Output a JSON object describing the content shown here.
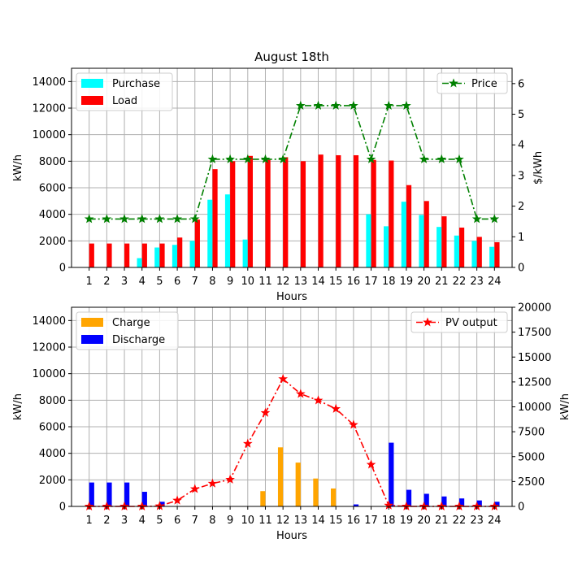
{
  "colors": {
    "purchase": "#00FFFF",
    "load": "#FF0000",
    "price": "#008000",
    "charge": "#FFA500",
    "discharge": "#0000FF",
    "pv": "#FF0000",
    "grid": "#B0B0B0"
  },
  "chart_data": [
    {
      "type": "bar",
      "title": "August 18th",
      "xlabel": "Hours",
      "ylabel": "kW/h",
      "y2label": "$/kWh",
      "categories": [
        "1",
        "2",
        "3",
        "4",
        "5",
        "6",
        "7",
        "8",
        "9",
        "10",
        "11",
        "12",
        "13",
        "14",
        "15",
        "16",
        "17",
        "18",
        "19",
        "20",
        "21",
        "22",
        "23",
        "24"
      ],
      "ylim": [
        0,
        15000
      ],
      "y_ticks": [
        0,
        2000,
        4000,
        6000,
        8000,
        10000,
        12000,
        14000
      ],
      "y2lim": [
        0,
        6.5
      ],
      "y2_ticks": [
        0,
        1,
        2,
        3,
        4,
        5,
        6
      ],
      "grid": true,
      "legend_left": "top-left",
      "legend_right": "top-right",
      "series": [
        {
          "name": "Purchase",
          "kind": "bar",
          "axis": "left",
          "values": [
            0,
            0,
            0,
            700,
            1500,
            1700,
            2000,
            5100,
            5500,
            2100,
            0,
            0,
            0,
            0,
            0,
            0,
            4000,
            3100,
            4950,
            3950,
            3050,
            2400,
            2000,
            1550
          ]
        },
        {
          "name": "Load",
          "kind": "bar",
          "axis": "left",
          "values": [
            1800,
            1800,
            1800,
            1800,
            1800,
            2250,
            3600,
            7400,
            8000,
            8400,
            8100,
            8300,
            8000,
            8500,
            8450,
            8450,
            8100,
            8050,
            6200,
            5000,
            3850,
            3000,
            2300,
            1900
          ]
        },
        {
          "name": "Price",
          "kind": "line",
          "axis": "right",
          "values": [
            1.58,
            1.58,
            1.58,
            1.58,
            1.58,
            1.58,
            1.58,
            3.53,
            3.53,
            3.53,
            3.53,
            3.53,
            5.28,
            5.28,
            5.28,
            5.28,
            3.53,
            5.28,
            5.28,
            3.53,
            3.53,
            3.53,
            1.58,
            1.58
          ]
        }
      ]
    },
    {
      "type": "bar",
      "title": "",
      "xlabel": "Hours",
      "ylabel": "kW/h",
      "y2label": "kW/h",
      "categories": [
        "1",
        "2",
        "3",
        "4",
        "5",
        "6",
        "7",
        "8",
        "9",
        "10",
        "11",
        "12",
        "13",
        "14",
        "15",
        "16",
        "17",
        "18",
        "19",
        "20",
        "21",
        "22",
        "23",
        "24"
      ],
      "ylim": [
        0,
        15000
      ],
      "y_ticks": [
        0,
        2000,
        4000,
        6000,
        8000,
        10000,
        12000,
        14000
      ],
      "y2lim": [
        0,
        20000
      ],
      "y2_ticks": [
        0,
        2500,
        5000,
        7500,
        10000,
        12500,
        15000,
        17500,
        20000
      ],
      "grid": true,
      "legend_left": "top-left",
      "legend_right": "top-right",
      "series": [
        {
          "name": "Charge",
          "kind": "bar",
          "axis": "left",
          "values": [
            0,
            0,
            0,
            0,
            0,
            0,
            0,
            0,
            0,
            0,
            1150,
            4450,
            3300,
            2100,
            1350,
            0,
            0,
            0,
            0,
            0,
            0,
            0,
            0,
            0
          ]
        },
        {
          "name": "Discharge",
          "kind": "bar",
          "axis": "left",
          "values": [
            1800,
            1800,
            1800,
            1100,
            350,
            0,
            0,
            0,
            0,
            0,
            0,
            0,
            0,
            0,
            0,
            150,
            0,
            4800,
            1250,
            950,
            750,
            600,
            450,
            350
          ]
        },
        {
          "name": "PV output",
          "kind": "line",
          "axis": "right",
          "values": [
            0,
            0,
            0,
            0,
            30,
            600,
            1750,
            2300,
            2700,
            6300,
            9400,
            12800,
            11300,
            10650,
            9800,
            8200,
            4200,
            100,
            0,
            0,
            0,
            0,
            0,
            0
          ]
        }
      ]
    }
  ]
}
